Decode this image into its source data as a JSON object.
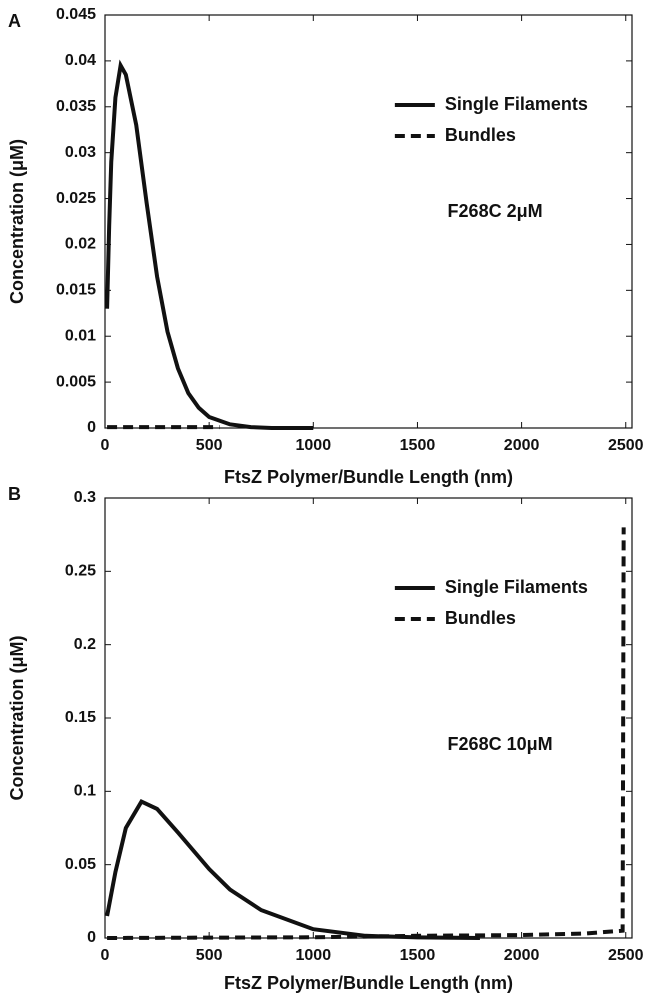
{
  "chart_data": [
    {
      "type": "line",
      "panel_label": "A",
      "x_label": "FtsZ Polymer/Bundle Length (nm)",
      "y_label": "Concentration (μM)",
      "annotation": "F268C 2μM",
      "legend": "upper right",
      "xlim": [
        0,
        2530
      ],
      "xticks": [
        0,
        500,
        1000,
        1500,
        2000,
        2500
      ],
      "ylim": [
        0,
        0.045
      ],
      "yticks": [
        0,
        0.005,
        0.01,
        0.015,
        0.02,
        0.025,
        0.03,
        0.035,
        0.04,
        0.045
      ],
      "series": [
        {
          "name": "Single Filaments",
          "color": "#111111",
          "style": "solid",
          "x": [
            10,
            20,
            30,
            50,
            75,
            100,
            150,
            200,
            250,
            300,
            350,
            400,
            450,
            500,
            600,
            700,
            800,
            1000
          ],
          "values": [
            0.013,
            0.022,
            0.029,
            0.036,
            0.0395,
            0.0385,
            0.033,
            0.0245,
            0.0165,
            0.0105,
            0.0065,
            0.0038,
            0.0022,
            0.0012,
            0.0004,
            0.0001,
            0,
            0
          ]
        },
        {
          "name": "Bundles",
          "color": "#111111",
          "style": "dashed",
          "x": [
            10,
            200,
            400,
            550
          ],
          "values": [
            0.0001,
            0.0001,
            0.0001,
            0.0001
          ]
        }
      ]
    },
    {
      "type": "line",
      "panel_label": "B",
      "x_label": "FtsZ Polymer/Bundle Length (nm)",
      "y_label": "Concentration (μM)",
      "annotation": "F268C 10μM",
      "legend": "upper right",
      "xlim": [
        0,
        2530
      ],
      "xticks": [
        0,
        500,
        1000,
        1500,
        2000,
        2500
      ],
      "ylim": [
        0,
        0.3
      ],
      "yticks": [
        0,
        0.05,
        0.1,
        0.15,
        0.2,
        0.25,
        0.3
      ],
      "series": [
        {
          "name": "Single Filaments",
          "color": "#111111",
          "style": "solid",
          "x": [
            10,
            50,
            100,
            175,
            250,
            350,
            500,
            600,
            750,
            1000,
            1250,
            1500,
            1800
          ],
          "values": [
            0.015,
            0.045,
            0.075,
            0.093,
            0.088,
            0.072,
            0.047,
            0.033,
            0.019,
            0.006,
            0.0015,
            0.0004,
            0
          ]
        },
        {
          "name": "Bundles",
          "color": "#111111",
          "style": "dashed",
          "x": [
            10,
            1000,
            1500,
            2000,
            2300,
            2485,
            2490
          ],
          "values": [
            0,
            0.0005,
            0.0015,
            0.002,
            0.003,
            0.005,
            0.28
          ]
        }
      ]
    }
  ]
}
